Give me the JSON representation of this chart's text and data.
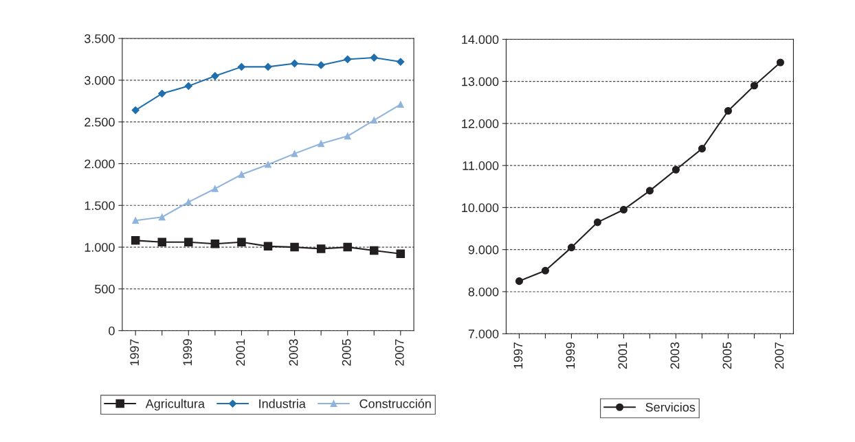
{
  "chart_data": [
    {
      "type": "line",
      "categories": [
        "1997",
        null,
        "1999",
        null,
        "2001",
        null,
        "2003",
        null,
        "2005",
        null,
        "2007"
      ],
      "series": [
        {
          "name": "Agricultura",
          "color": "#231f20",
          "marker": "square",
          "values": [
            1080,
            1060,
            1060,
            1040,
            1060,
            1010,
            1000,
            980,
            1000,
            960,
            920
          ]
        },
        {
          "name": "Industria",
          "color": "#1f6fae",
          "marker": "diamond",
          "values": [
            2640,
            2840,
            2930,
            3050,
            3160,
            3160,
            3200,
            3180,
            3250,
            3270,
            3220
          ]
        },
        {
          "name": "Construcción",
          "color": "#8fb4dc",
          "marker": "triangle",
          "values": [
            1320,
            1360,
            1540,
            1700,
            1870,
            1990,
            2120,
            2240,
            2330,
            2520,
            2710
          ]
        }
      ],
      "ylim": [
        0,
        3500
      ],
      "yticks": [
        0,
        500,
        {
          "value": 1000,
          "label": "1.000"
        },
        {
          "value": 1500,
          "label": "1.500"
        },
        {
          "value": 2000,
          "label": "2.000"
        },
        {
          "value": 2500,
          "label": "2.500"
        },
        {
          "value": 3000,
          "label": "3.000"
        },
        {
          "value": 3500,
          "label": "3.500"
        }
      ],
      "grid": "y",
      "legend": "bottom",
      "line_style": "solid"
    },
    {
      "type": "line",
      "categories": [
        "1997",
        null,
        "1999",
        null,
        "2001",
        null,
        "2003",
        null,
        "2005",
        null,
        "2007"
      ],
      "series": [
        {
          "name": "Servicios",
          "color": "#231f20",
          "marker": "circle",
          "values": [
            8250,
            8500,
            9050,
            9650,
            9950,
            10400,
            10900,
            11400,
            12300,
            12900,
            13450
          ]
        }
      ],
      "ylim": [
        7000,
        14000
      ],
      "yticks": [
        {
          "value": 7000,
          "label": "7.000"
        },
        {
          "value": 8000,
          "label": "8.000"
        },
        {
          "value": 9000,
          "label": "9.000"
        },
        {
          "value": 10000,
          "label": "10.000"
        },
        {
          "value": 11000,
          "label": "11.000"
        },
        {
          "value": 12000,
          "label": "12.000"
        },
        {
          "value": 13000,
          "label": "13.000"
        },
        {
          "value": 14000,
          "label": "14.000"
        }
      ],
      "grid": "y",
      "legend": "bottom",
      "line_style": "solid"
    }
  ]
}
